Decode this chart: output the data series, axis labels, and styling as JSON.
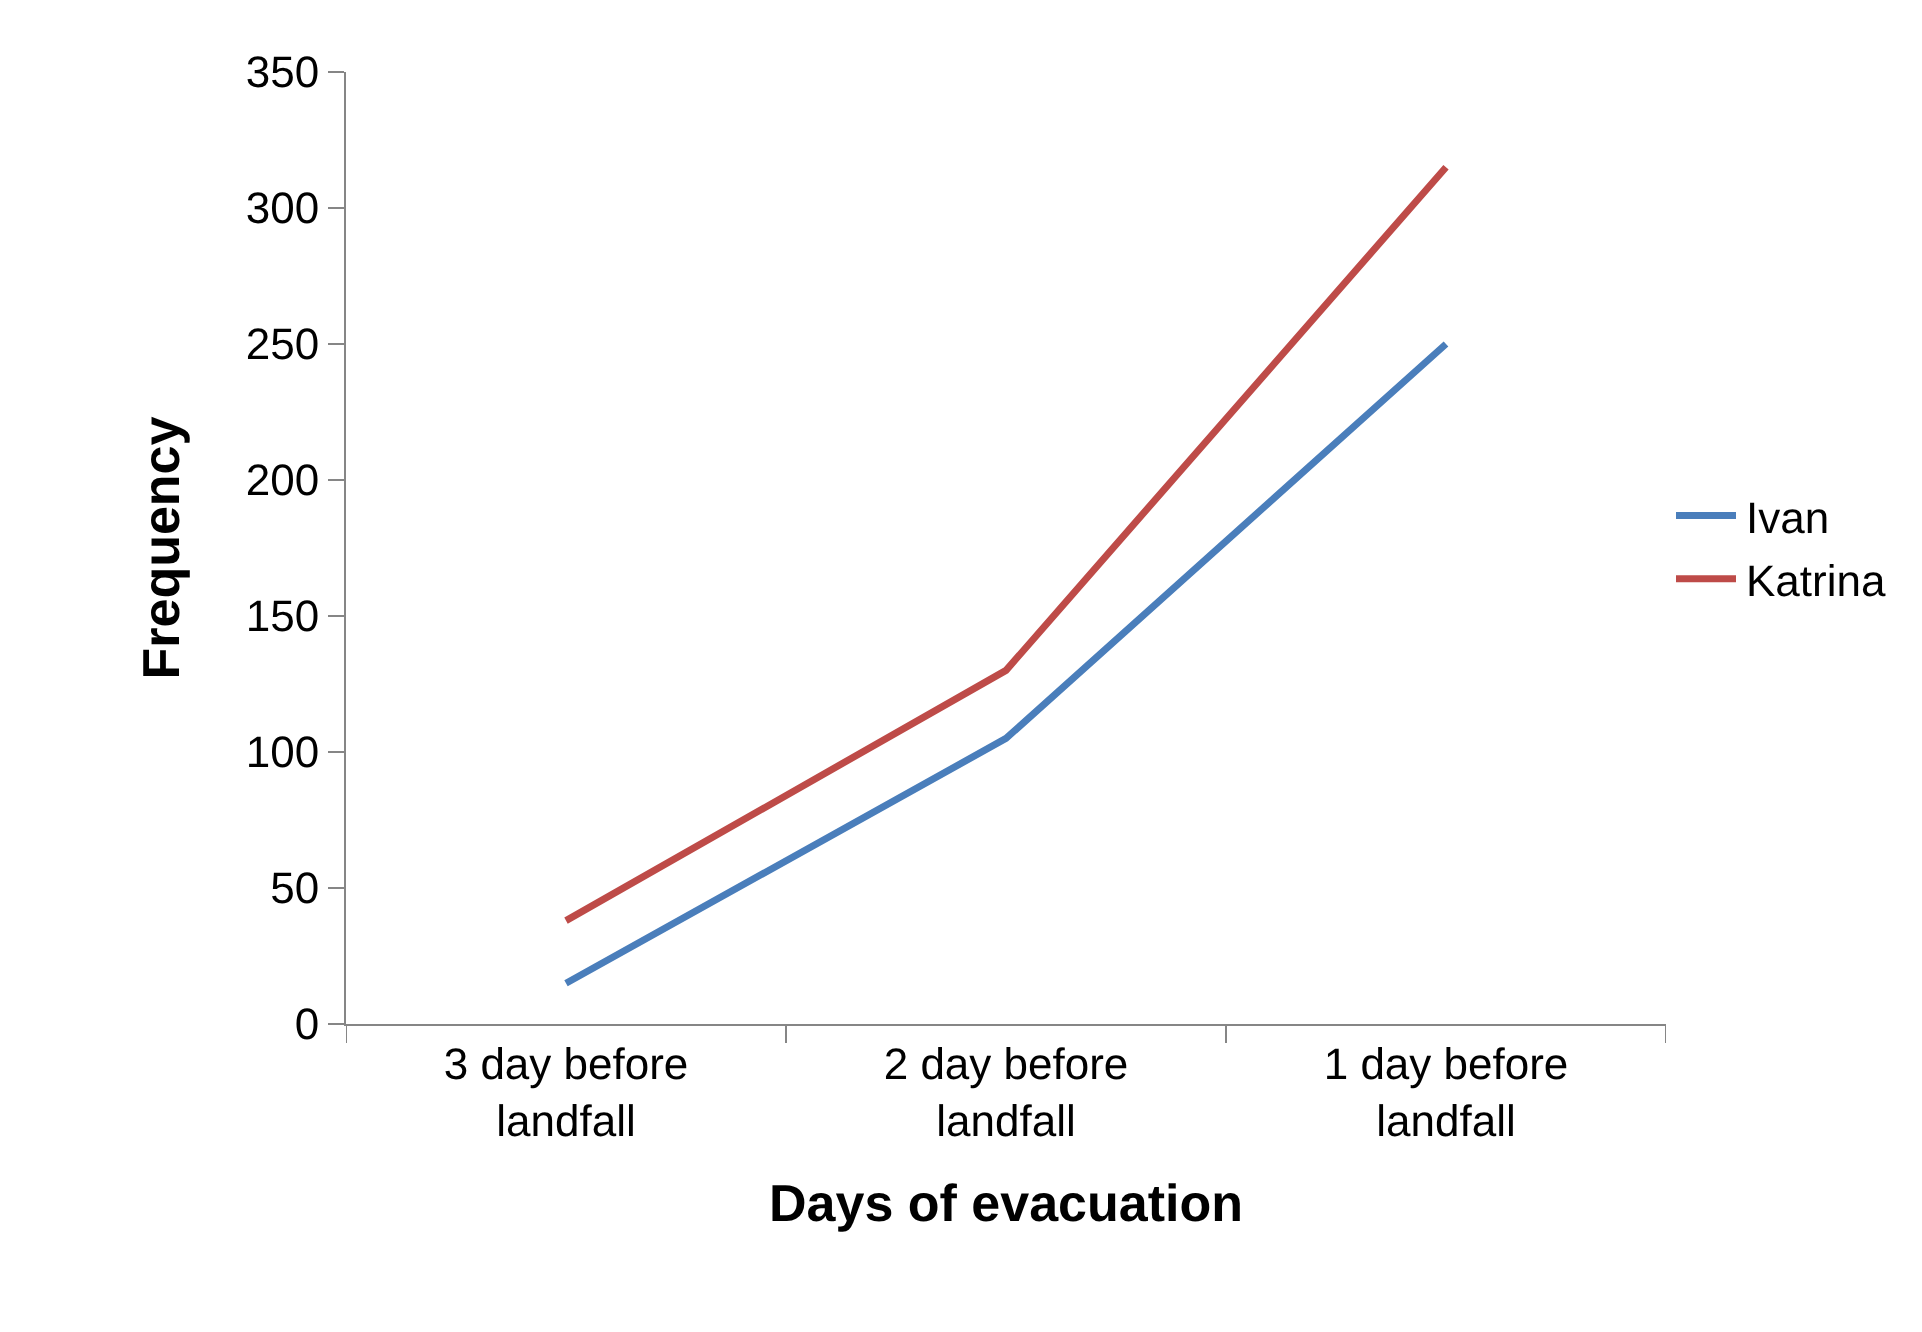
{
  "chart_data": {
    "type": "line",
    "xlabel": "Days of evacuation",
    "ylabel": "Frequency",
    "categories": [
      "3 day before landfall",
      "2 day before landfall",
      "1 day before landfall"
    ],
    "series": [
      {
        "name": "Ivan",
        "color": "#4a7ebb",
        "values": [
          15,
          105,
          250
        ]
      },
      {
        "name": "Katrina",
        "color": "#be4b48",
        "values": [
          38,
          130,
          315
        ]
      }
    ],
    "ylim": [
      0,
      350
    ],
    "yticks": [
      0,
      50,
      100,
      150,
      200,
      250,
      300,
      350
    ],
    "legend": "right",
    "marker": "none",
    "line_style": "solid"
  }
}
